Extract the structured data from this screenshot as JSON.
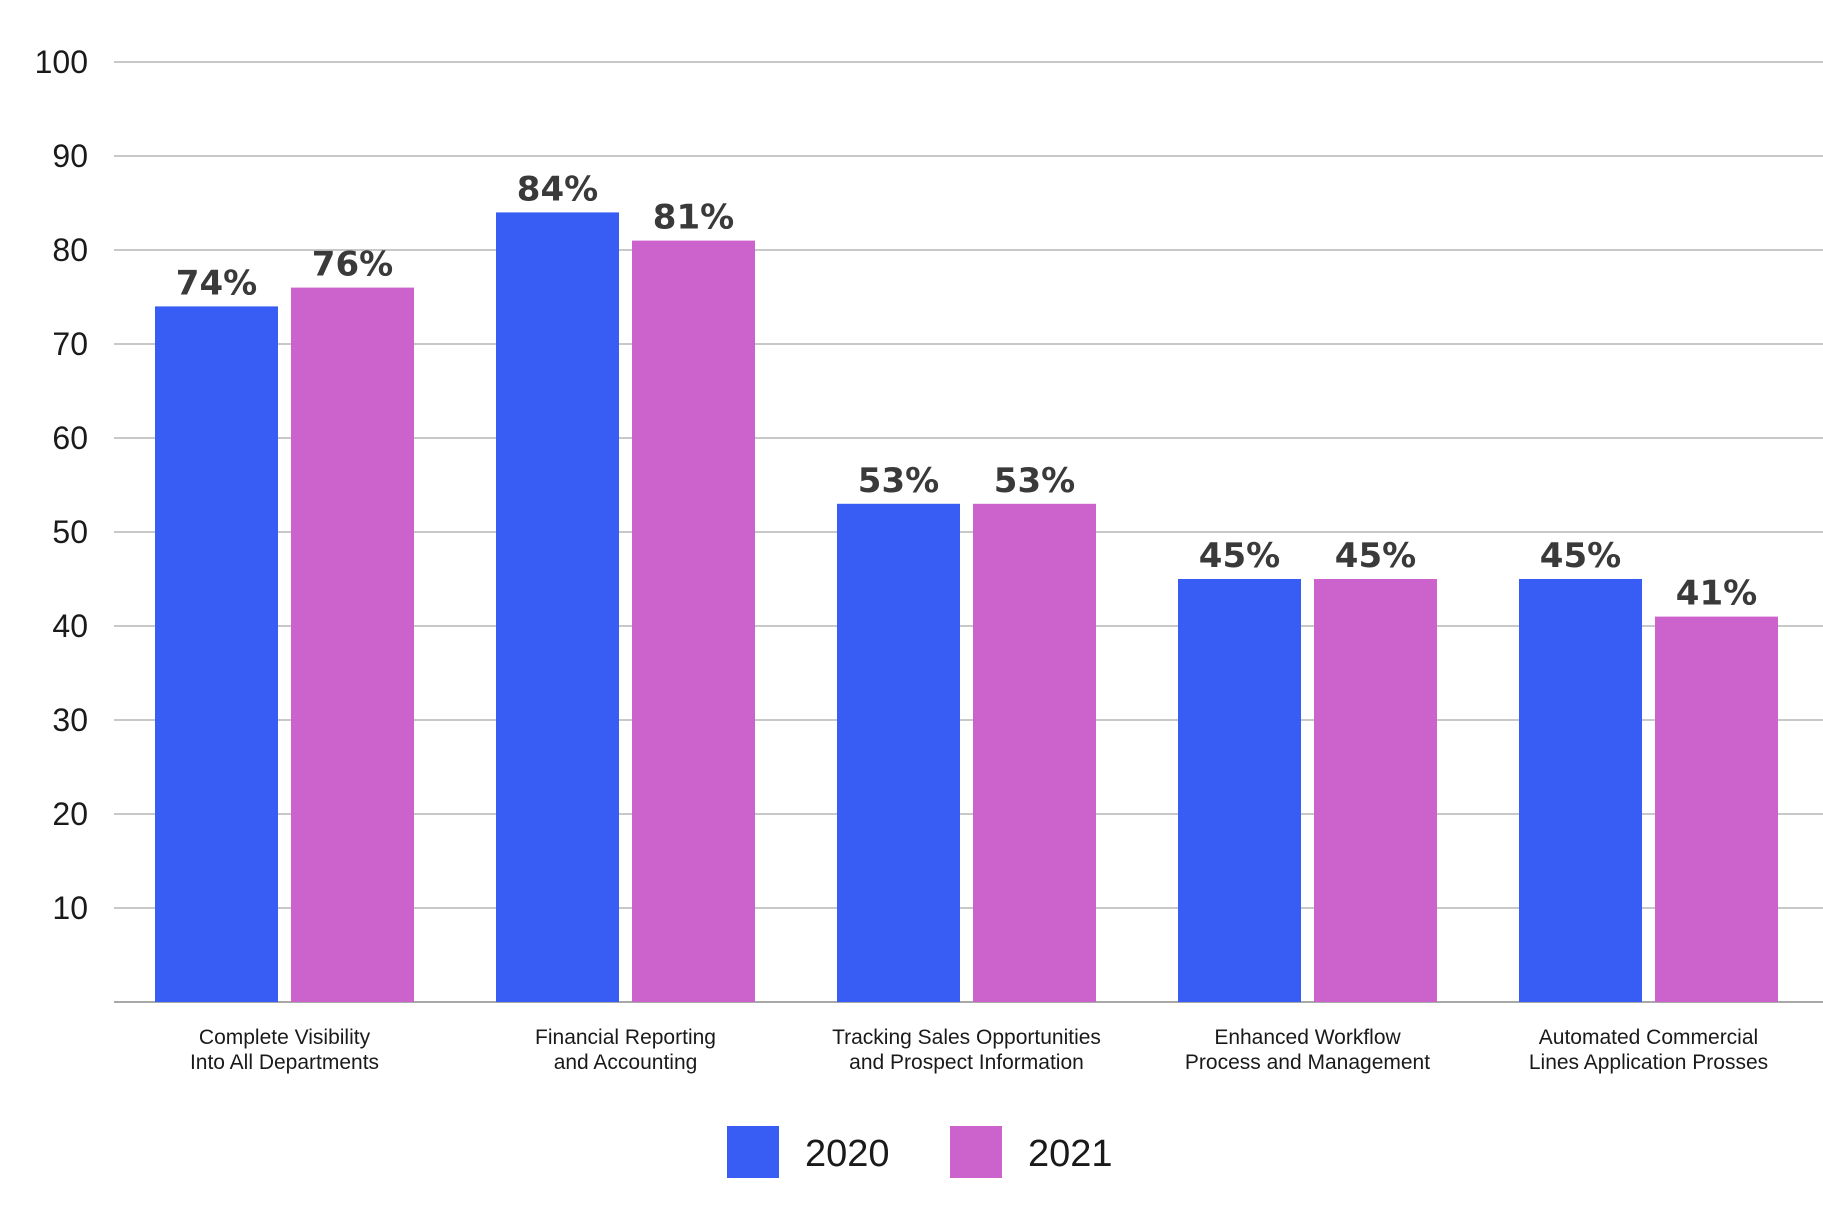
{
  "chart_data": {
    "type": "bar",
    "categories": [
      [
        "Complete Visibility",
        "Into All Departments"
      ],
      [
        "Financial Reporting",
        "and Accounting"
      ],
      [
        "Tracking Sales Opportunities",
        "and Prospect Information"
      ],
      [
        "Enhanced Workflow",
        "Process and Management"
      ],
      [
        "Automated Commercial",
        "Lines Application Prosses"
      ]
    ],
    "series": [
      {
        "name": "2020",
        "color": "#375DF5",
        "values": [
          74,
          84,
          53,
          45,
          45
        ],
        "labels": [
          "74%",
          "84%",
          "53%",
          "45%",
          "45%"
        ]
      },
      {
        "name": "2021",
        "color": "#CC63CC",
        "values": [
          76,
          81,
          53,
          45,
          41
        ],
        "labels": [
          "76%",
          "81%",
          "53%",
          "45%",
          "41%"
        ]
      }
    ],
    "yticks": [
      10,
      20,
      30,
      40,
      50,
      60,
      70,
      80,
      90,
      100
    ],
    "ylim": [
      0,
      100
    ],
    "grid": true,
    "legend": "bottom-center",
    "title": "",
    "xlabel": "",
    "ylabel": ""
  }
}
